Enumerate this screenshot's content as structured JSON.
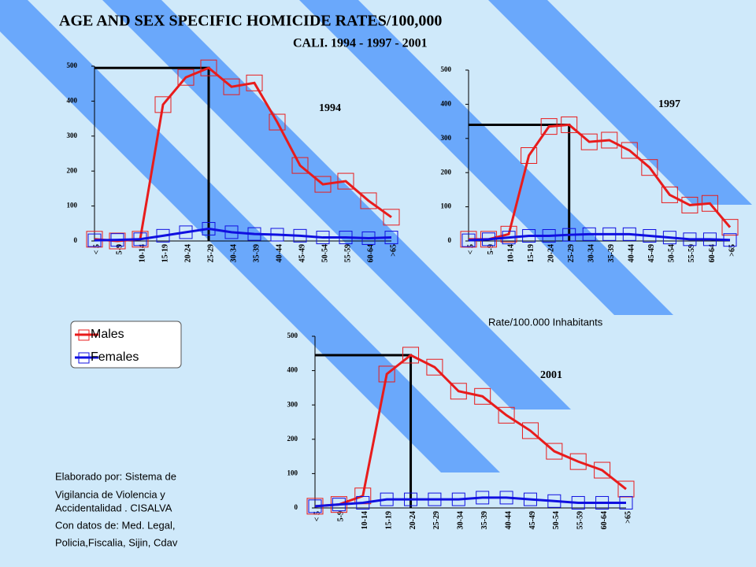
{
  "title": "AGE AND SEX SPECIFIC HOMICIDE RATES/100,000",
  "subtitle": "CALI. 1994 - 1997 - 2001",
  "axis_note": "Rate/100.000  Inhabitants",
  "credits": [
    "Elaborado por: Sistema de",
    "Vigilancia de Violencia y",
    "Accidentalidad . CISALVA",
    "Con datos de: Med. Legal,",
    "Policia,Fiscalia, Sijin, Cdav"
  ],
  "chart_data": [
    {
      "type": "line",
      "title": "1994",
      "categories": [
        "< 5",
        "5-9",
        "10-14",
        "15-19",
        "20-24",
        "25-29",
        "30-34",
        "35-39",
        "40-44",
        "45-49",
        "50-54",
        "55-59",
        "60-64",
        ">65"
      ],
      "series": [
        {
          "name": "Males",
          "color": "#e81c1c",
          "values": [
            5,
            0,
            5,
            390,
            468,
            495,
            441,
            452,
            340,
            216,
            162,
            171,
            115,
            68
          ]
        },
        {
          "name": "Females",
          "color": "#1010e0",
          "values": [
            2,
            3,
            5,
            15,
            25,
            35,
            25,
            20,
            18,
            15,
            10,
            10,
            8,
            10
          ]
        }
      ],
      "ylim": [
        0,
        500
      ],
      "yticks": [
        0,
        100,
        200,
        300,
        400,
        500
      ]
    },
    {
      "type": "line",
      "title": "1997",
      "categories": [
        "< 5",
        "5-9",
        "10-14",
        "15-19",
        "20-24",
        "25-29",
        "30-34",
        "35-39",
        "40-44",
        "45-49",
        "50-54",
        "55-59",
        "60-64",
        ">65"
      ],
      "series": [
        {
          "name": "Males",
          "color": "#e81c1c",
          "values": [
            5,
            5,
            20,
            250,
            335,
            340,
            290,
            295,
            265,
            215,
            135,
            105,
            110,
            40
          ]
        },
        {
          "name": "Females",
          "color": "#1010e0",
          "values": [
            2,
            5,
            10,
            15,
            15,
            18,
            20,
            20,
            20,
            15,
            10,
            5,
            5,
            3
          ]
        }
      ],
      "ylim": [
        0,
        500
      ],
      "yticks": [
        0,
        100,
        200,
        300,
        400,
        500
      ]
    },
    {
      "type": "line",
      "title": "2001",
      "categories": [
        "< 5",
        "5-9",
        "10-14",
        "15-19",
        "20-24",
        "25-29",
        "30-34",
        "35-39",
        "40-44",
        "45-49",
        "50-54",
        "55-59",
        "60-64",
        ">65"
      ],
      "series": [
        {
          "name": "Males",
          "color": "#e81c1c",
          "values": [
            5,
            10,
            35,
            390,
            445,
            410,
            340,
            325,
            270,
            225,
            165,
            135,
            110,
            55
          ]
        },
        {
          "name": "Females",
          "color": "#1010e0",
          "values": [
            5,
            10,
            15,
            25,
            25,
            25,
            25,
            30,
            30,
            25,
            20,
            15,
            15,
            15
          ]
        }
      ],
      "ylim": [
        0,
        500
      ],
      "yticks": [
        0,
        100,
        200,
        300,
        400,
        500
      ]
    }
  ]
}
